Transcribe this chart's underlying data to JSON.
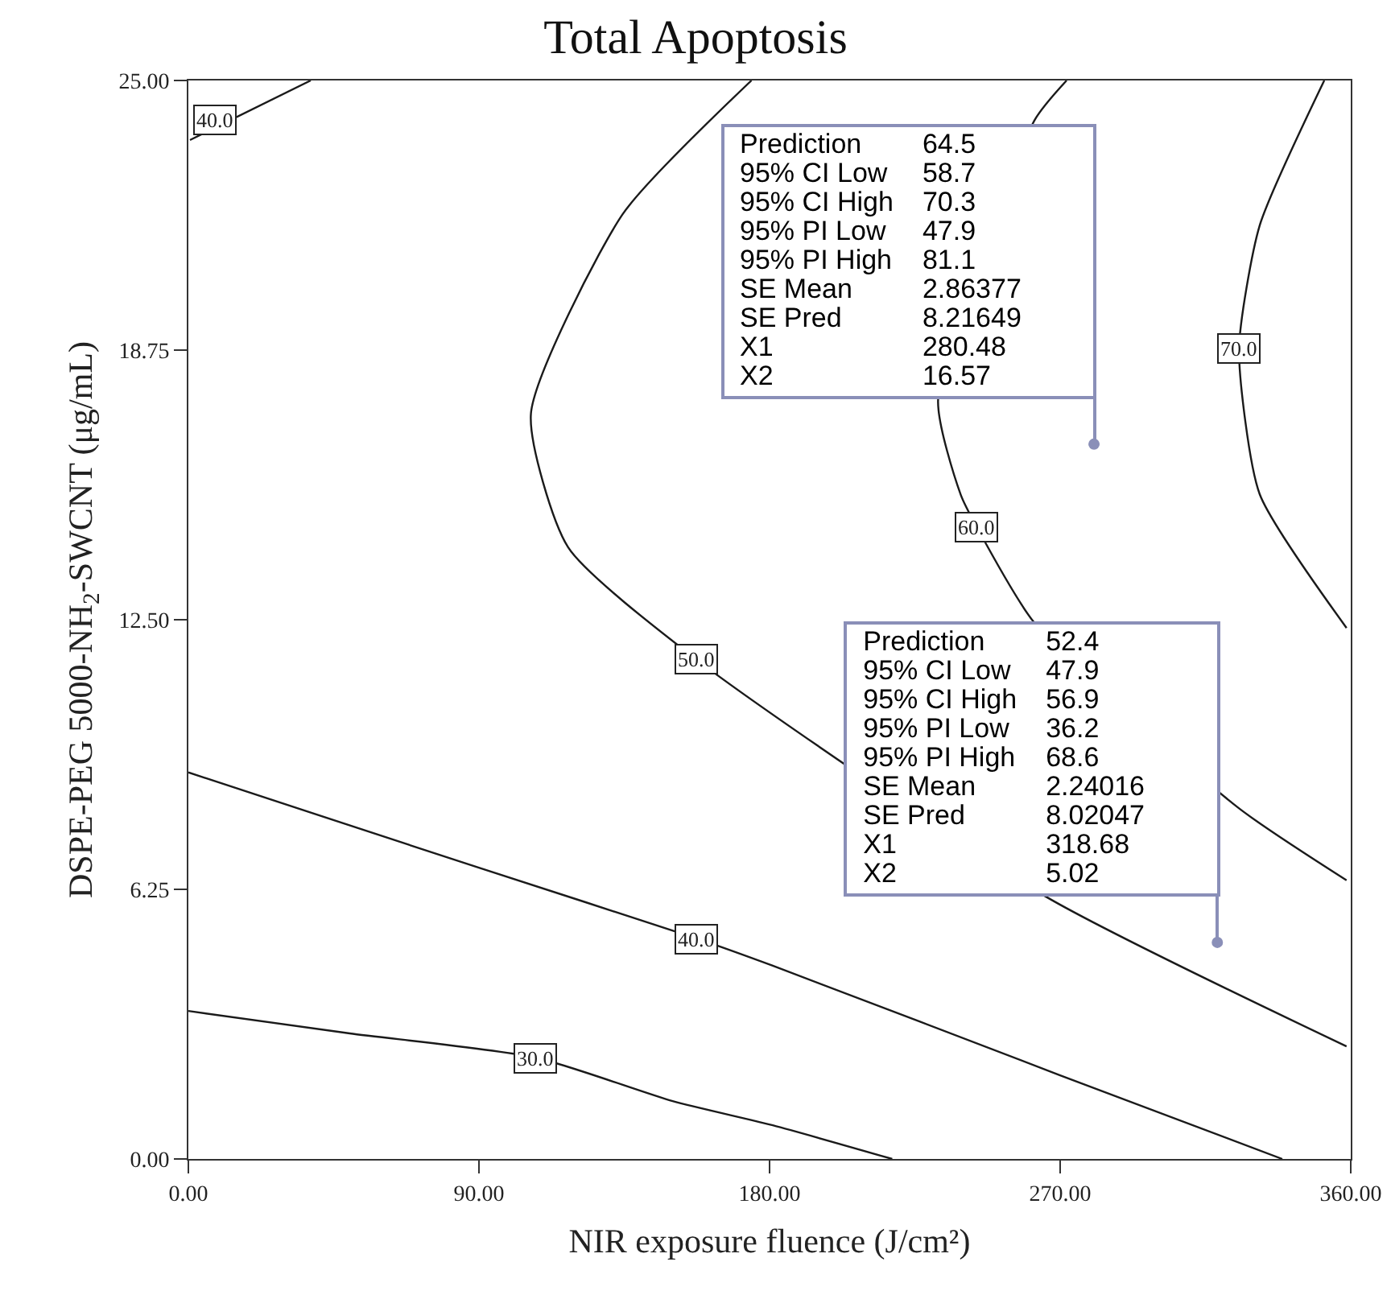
{
  "chart_data": {
    "type": "line",
    "title": "Total Apoptosis",
    "xlabel": "NIR exposure fluence (J/cm²)",
    "ylabel": "DSPE-PEG 5000-NH$_{2}$-SWCNT (μg/mL)",
    "xlim": [
      0,
      360
    ],
    "ylim": [
      0,
      25
    ],
    "xticks": [
      {
        "value": 0,
        "label": "0.00"
      },
      {
        "value": 90,
        "label": "90.00"
      },
      {
        "value": 180,
        "label": "180.00"
      },
      {
        "value": 270,
        "label": "270.00"
      },
      {
        "value": 360,
        "label": "360.00"
      }
    ],
    "yticks": [
      {
        "value": 0,
        "label": "0.00"
      },
      {
        "value": 6.25,
        "label": "6.25"
      },
      {
        "value": 12.5,
        "label": "12.50"
      },
      {
        "value": 18.75,
        "label": "18.75"
      },
      {
        "value": 25,
        "label": "25.00"
      }
    ],
    "grid": false,
    "line_style": "solid",
    "series": [
      {
        "color": "#1a1a1a",
        "x": [
          0,
          50,
          107.6,
          150,
          181,
          218
        ],
        "values": [
          3.43,
          2.91,
          2.35,
          1.34,
          0.78,
          0
        ]
      },
      {
        "color": "#1a1a1a",
        "x": [
          0,
          90,
          157.5,
          181,
          270,
          338.8
        ],
        "values": [
          8.96,
          6.75,
          5.11,
          4.48,
          1.94,
          0
        ]
      },
      {
        "color": "#1a1a1a",
        "x": [
          0.5,
          37.9
        ],
        "values": [
          23.62,
          25
        ]
      },
      {
        "color": "#1a1a1a",
        "x": [
          174.4,
          134.5,
          106.1,
          117.6,
          157.5,
          265.6,
          358.7
        ],
        "values": [
          25,
          21.9,
          17.28,
          14.18,
          11.57,
          6.08,
          2.61
        ]
      },
      {
        "color": "#1a1a1a",
        "x": [
          272,
          262,
          232.2,
          239.2,
          244.1,
          262,
          325,
          358.7
        ],
        "values": [
          25,
          24.07,
          17.6,
          15.4,
          14.66,
          12.43,
          8.15,
          6.46
        ]
      },
      {
        "color": "#1a1a1a",
        "x": [
          351.8,
          331.8,
          325.4,
          331.8,
          358.7
        ],
        "values": [
          25,
          21.64,
          18.77,
          15.41,
          12.31
        ]
      },
      {
        "type": "scatter",
        "color": "#8a8fb8",
        "marker": "circle",
        "x": [
          280.48,
          318.68
        ],
        "values": [
          16.57,
          5.02
        ]
      }
    ],
    "annotations": [
      {
        "text": "30.0",
        "x": 107.6,
        "y": 2.35
      },
      {
        "text": "40.0",
        "x": 157.5,
        "y": 5.11
      },
      {
        "text": "40.0",
        "x": 8,
        "y": 24.1
      },
      {
        "text": "50.0",
        "x": 157.5,
        "y": 11.57
      },
      {
        "text": "60.0",
        "x": 244.1,
        "y": 14.66
      },
      {
        "text": "70.0",
        "x": 325.4,
        "y": 18.77
      },
      "Prediction",
      "64.5",
      "95% CI Low",
      "58.7",
      "95% CI High",
      "70.3",
      "95% PI Low",
      "47.9",
      "95% PI High",
      "81.1",
      "SE Mean",
      "2.86377",
      "SE Pred",
      "8.21649",
      "X1",
      "280.48",
      "X2",
      "16.57",
      "Prediction",
      "52.4",
      "95% CI Low",
      "47.9",
      "95% CI High",
      "56.9",
      "95% PI Low",
      "36.2",
      "95% PI High",
      "68.6",
      "SE Mean",
      "2.24016",
      "SE Pred",
      "8.02047",
      "X1",
      "318.68",
      "X2",
      "5.02"
    ]
  }
}
